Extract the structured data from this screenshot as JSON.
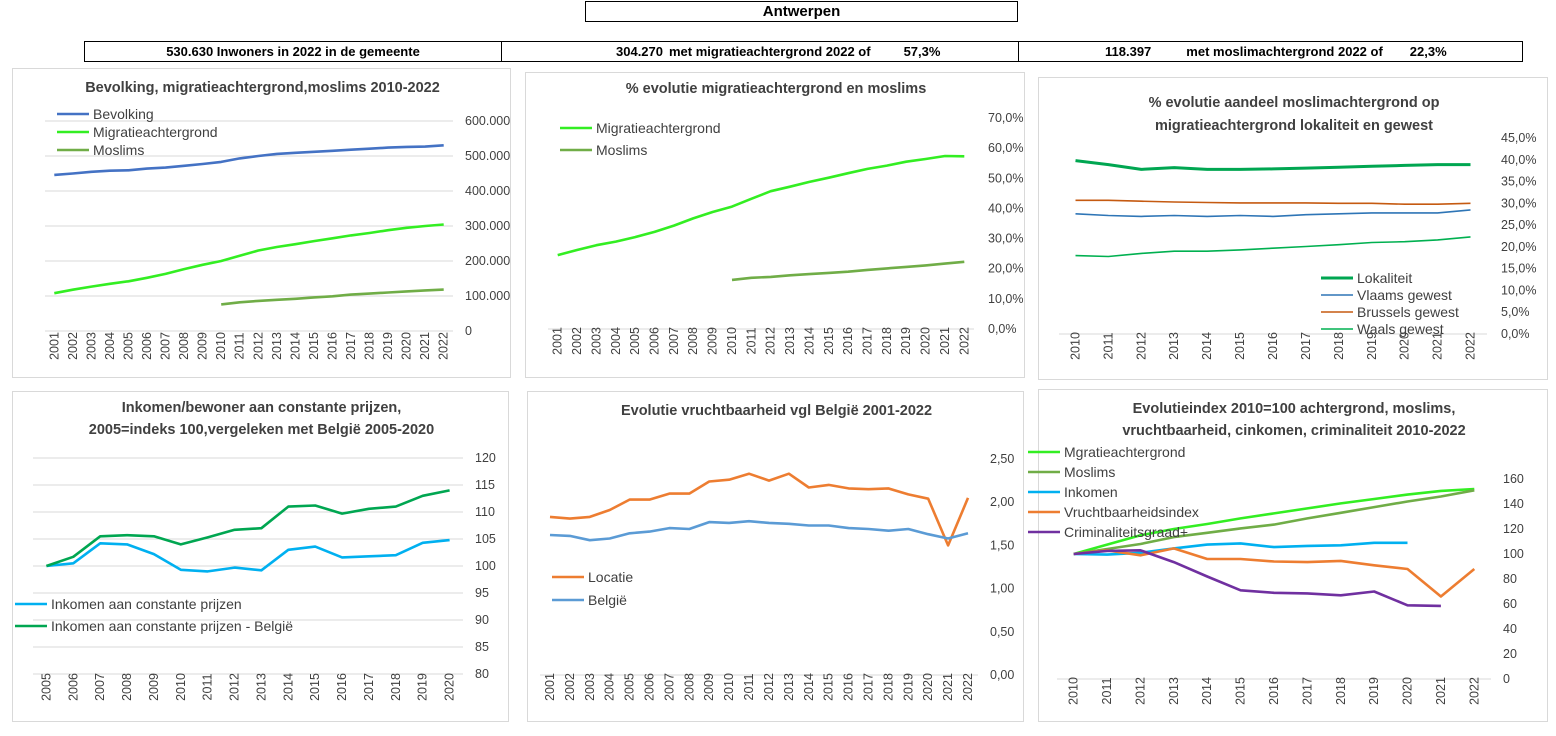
{
  "header": {
    "title": "Antwerpen",
    "stat1": "530.630 Inwoners in 2022 in de gemeente",
    "stat2_value": "304.270",
    "stat2_text": "met migratieachtergrond 2022 of",
    "stat2_pct": "57,3%",
    "stat3_value": "118.397",
    "stat3_text": "met moslimachtergrond 2022 of",
    "stat3_pct": "22,3%"
  },
  "chart_data": [
    {
      "type": "line",
      "title": "Bevolking, migratieachtergrond,moslims  2010-2022",
      "x": [
        "2001",
        "2002",
        "2003",
        "2004",
        "2005",
        "2006",
        "2007",
        "2008",
        "2009",
        "2010",
        "2011",
        "2012",
        "2013",
        "2014",
        "2015",
        "2016",
        "2017",
        "2018",
        "2019",
        "2020",
        "2021",
        "2022"
      ],
      "ylim": [
        0,
        600000
      ],
      "yticks": [
        0,
        100000,
        200000,
        300000,
        400000,
        500000,
        600000
      ],
      "ytick_labels": [
        "0",
        "100.000",
        "200.000",
        "300.000",
        "400.000",
        "500.000",
        "600.000"
      ],
      "grid": true,
      "legend": "top-left",
      "series": [
        {
          "name": "Bevolking",
          "color": "#4472c4",
          "values": [
            446000,
            450000,
            455000,
            458000,
            459000,
            464000,
            467000,
            472000,
            477000,
            483000,
            493000,
            500000,
            506000,
            509000,
            512000,
            515000,
            518000,
            521000,
            524000,
            526000,
            527000,
            530630
          ]
        },
        {
          "name": "Migratieachtergrond",
          "color": "#33ee22",
          "values": [
            108000,
            118000,
            127000,
            135000,
            142000,
            152000,
            163000,
            177000,
            189000,
            200000,
            215000,
            230000,
            240000,
            248000,
            257000,
            265000,
            273000,
            280000,
            288000,
            295000,
            300000,
            304270
          ]
        },
        {
          "name": "Moslims",
          "color": "#70ad47",
          "values": [
            null,
            null,
            null,
            null,
            null,
            null,
            null,
            null,
            null,
            76000,
            82000,
            86000,
            89000,
            92000,
            96000,
            99000,
            104000,
            107000,
            110000,
            113000,
            116000,
            118397
          ]
        }
      ]
    },
    {
      "type": "line",
      "title": "% evolutie migratieachtergrond  en moslims",
      "x": [
        "2001",
        "2002",
        "2003",
        "2004",
        "2005",
        "2006",
        "2007",
        "2008",
        "2009",
        "2010",
        "2011",
        "2012",
        "2013",
        "2014",
        "2015",
        "2016",
        "2017",
        "2018",
        "2019",
        "2020",
        "2021",
        "2022"
      ],
      "ylim": [
        0,
        0.7
      ],
      "yticks": [
        0,
        0.1,
        0.2,
        0.3,
        0.4,
        0.5,
        0.6,
        0.7
      ],
      "ytick_labels": [
        "0,0%",
        "10,0%",
        "20,0%",
        "30,0%",
        "40,0%",
        "50,0%",
        "60,0%",
        "70,0%"
      ],
      "grid": false,
      "legend": "top-left",
      "series": [
        {
          "name": "Migratieachtergrond",
          "color": "#33ee22",
          "values": [
            0.245,
            0.262,
            0.278,
            0.29,
            0.305,
            0.322,
            0.343,
            0.367,
            0.388,
            0.406,
            0.432,
            0.457,
            0.472,
            0.488,
            0.502,
            0.517,
            0.531,
            0.542,
            0.555,
            0.564,
            0.574,
            0.573
          ]
        },
        {
          "name": "Moslims",
          "color": "#70ad47",
          "values": [
            null,
            null,
            null,
            null,
            null,
            null,
            null,
            null,
            null,
            0.163,
            0.17,
            0.173,
            0.178,
            0.182,
            0.186,
            0.19,
            0.196,
            0.201,
            0.206,
            0.211,
            0.217,
            0.223
          ]
        }
      ]
    },
    {
      "type": "line",
      "title": "% evolutie aandeel moslimachtergrond op migratieachtergrond lokaliteit  en gewest",
      "title_lines": [
        "% evolutie aandeel moslimachtergrond op",
        "migratieachtergrond lokaliteit  en gewest"
      ],
      "x": [
        "2010",
        "2011",
        "2012",
        "2013",
        "2014",
        "2015",
        "2016",
        "2017",
        "2018",
        "2019",
        "2020",
        "2021",
        "2022"
      ],
      "ylim": [
        0,
        0.45
      ],
      "yticks": [
        0,
        0.05,
        0.1,
        0.15,
        0.2,
        0.25,
        0.3,
        0.35,
        0.4,
        0.45
      ],
      "ytick_labels": [
        "0,0%",
        "5,0%",
        "10,0%",
        "15,0%",
        "20,0%",
        "25,0%",
        "30,0%",
        "35,0%",
        "40,0%",
        "45,0%"
      ],
      "grid": false,
      "legend": "bottom-right",
      "series": [
        {
          "name": "Lokaliteit",
          "color": "#00a651",
          "width": 3,
          "values": [
            0.398,
            0.389,
            0.378,
            0.382,
            0.378,
            0.378,
            0.379,
            0.381,
            0.383,
            0.385,
            0.387,
            0.389,
            0.389
          ]
        },
        {
          "name": "Vlaams gewest",
          "color": "#2e75b6",
          "width": 1.6,
          "values": [
            0.276,
            0.272,
            0.27,
            0.272,
            0.27,
            0.272,
            0.27,
            0.274,
            0.276,
            0.278,
            0.278,
            0.278,
            0.285
          ]
        },
        {
          "name": "Brussels gewest",
          "color": "#c55a11",
          "width": 1.6,
          "values": [
            0.307,
            0.307,
            0.305,
            0.303,
            0.302,
            0.301,
            0.301,
            0.301,
            0.3,
            0.3,
            0.298,
            0.298,
            0.3
          ]
        },
        {
          "name": "Waals gewest",
          "color": "#00b050",
          "width": 1.6,
          "values": [
            0.18,
            0.178,
            0.185,
            0.19,
            0.19,
            0.193,
            0.197,
            0.201,
            0.205,
            0.21,
            0.212,
            0.216,
            0.223
          ]
        }
      ]
    },
    {
      "type": "line",
      "title": "Inkomen/bewoner aan constante prijzen, 2005=indeks 100,vergeleken met België 2005-2020",
      "title_lines": [
        "Inkomen/bewoner aan constante prijzen,",
        "2005=indeks 100,vergeleken met België 2005-2020"
      ],
      "x": [
        "2005",
        "2006",
        "2007",
        "2008",
        "2009",
        "2010",
        "2011",
        "2012",
        "2013",
        "2014",
        "2015",
        "2016",
        "2017",
        "2018",
        "2019",
        "2020"
      ],
      "ylim": [
        80,
        120
      ],
      "yticks": [
        80,
        85,
        90,
        95,
        100,
        105,
        110,
        115,
        120
      ],
      "ytick_labels": [
        "80",
        "85",
        "90",
        "95",
        "100",
        "105",
        "110",
        "115",
        "120"
      ],
      "grid": true,
      "legend": "bottom-left",
      "series": [
        {
          "name": "Inkomen aan constante prijzen",
          "color": "#00b0f0",
          "values": [
            100,
            100.5,
            104.2,
            104,
            102.2,
            99.3,
            99,
            99.7,
            99.2,
            103,
            103.6,
            101.6,
            101.8,
            102,
            104.3,
            104.8
          ]
        },
        {
          "name": "Inkomen aan constante prijzen - België",
          "color": "#00a651",
          "values": [
            100,
            101.7,
            105.5,
            105.7,
            105.5,
            104,
            105.3,
            106.7,
            107,
            111,
            111.2,
            109.7,
            110.6,
            111,
            113,
            114
          ]
        }
      ]
    },
    {
      "type": "line",
      "title": "Evolutie vruchtbaarheid vgl België 2001-2022",
      "x": [
        "2001",
        "2002",
        "2003",
        "2004",
        "2005",
        "2006",
        "2007",
        "2008",
        "2009",
        "2010",
        "2011",
        "2012",
        "2013",
        "2014",
        "2015",
        "2016",
        "2017",
        "2018",
        "2019",
        "2020",
        "2021",
        "2022"
      ],
      "ylim": [
        0,
        2.5
      ],
      "yticks": [
        0,
        0.5,
        1,
        1.5,
        2,
        2.5
      ],
      "ytick_labels": [
        "0,00",
        "0,50",
        "1,00",
        "1,50",
        "2,00",
        "2,50"
      ],
      "grid": false,
      "legend": "middle-left",
      "series": [
        {
          "name": "Locatie",
          "color": "#ed7d31",
          "values": [
            1.83,
            1.81,
            1.83,
            1.91,
            2.03,
            2.03,
            2.1,
            2.1,
            2.24,
            2.26,
            2.33,
            2.25,
            2.33,
            2.17,
            2.2,
            2.16,
            2.15,
            2.16,
            2.09,
            2.04,
            1.5,
            2.05
          ]
        },
        {
          "name": "België",
          "color": "#5b9bd5",
          "values": [
            1.62,
            1.61,
            1.56,
            1.58,
            1.64,
            1.66,
            1.7,
            1.69,
            1.77,
            1.76,
            1.78,
            1.76,
            1.75,
            1.73,
            1.73,
            1.7,
            1.69,
            1.67,
            1.69,
            1.63,
            1.58,
            1.64
          ]
        }
      ]
    },
    {
      "type": "line",
      "title": "Evolutieindex 2010=100 achtergrond, moslims, vruchtbaarheid, cinkomen, criminaliteit  2010-2022",
      "title_lines": [
        "Evolutieindex 2010=100 achtergrond, moslims,",
        "vruchtbaarheid, cinkomen, criminaliteit  2010-2022"
      ],
      "x": [
        "2010",
        "2011",
        "2012",
        "2013",
        "2014",
        "2015",
        "2016",
        "2017",
        "2018",
        "2019",
        "2020",
        "2021",
        "2022"
      ],
      "ylim": [
        0,
        160
      ],
      "yticks": [
        0,
        20,
        40,
        60,
        80,
        100,
        120,
        140,
        160
      ],
      "ytick_labels": [
        "0",
        "20",
        "40",
        "60",
        "80",
        "100",
        "120",
        "140",
        "160"
      ],
      "grid": false,
      "legend": "top-left",
      "series": [
        {
          "name": "Mgratieachtergrond",
          "color": "#33ee22",
          "values": [
            100,
            107.5,
            115,
            120,
            124,
            128.5,
            132.5,
            136.5,
            140.5,
            144,
            147.5,
            150.5,
            152
          ]
        },
        {
          "name": "Moslims",
          "color": "#70ad47",
          "values": [
            100,
            104,
            108,
            113.5,
            117,
            120.5,
            123.5,
            128.5,
            133,
            137.5,
            142,
            146,
            151
          ]
        },
        {
          "name": "Inkomen",
          "color": "#00b0f0",
          "values": [
            100,
            99.5,
            101,
            104.5,
            107.5,
            108.5,
            105.5,
            106.5,
            107,
            109,
            109,
            null,
            null
          ]
        },
        {
          "name": "Vruchtbaarheidsindex",
          "color": "#ed7d31",
          "values": [
            100,
            103,
            99,
            104.5,
            96,
            96,
            94,
            93.5,
            94.5,
            91,
            88,
            66,
            88
          ]
        },
        {
          "name": "Criminaliteitsgraad+",
          "color": "#7030a0",
          "values": [
            100,
            102.5,
            103,
            93.5,
            82,
            71,
            69,
            68.5,
            67,
            70,
            59,
            58.5,
            null
          ]
        }
      ]
    }
  ]
}
